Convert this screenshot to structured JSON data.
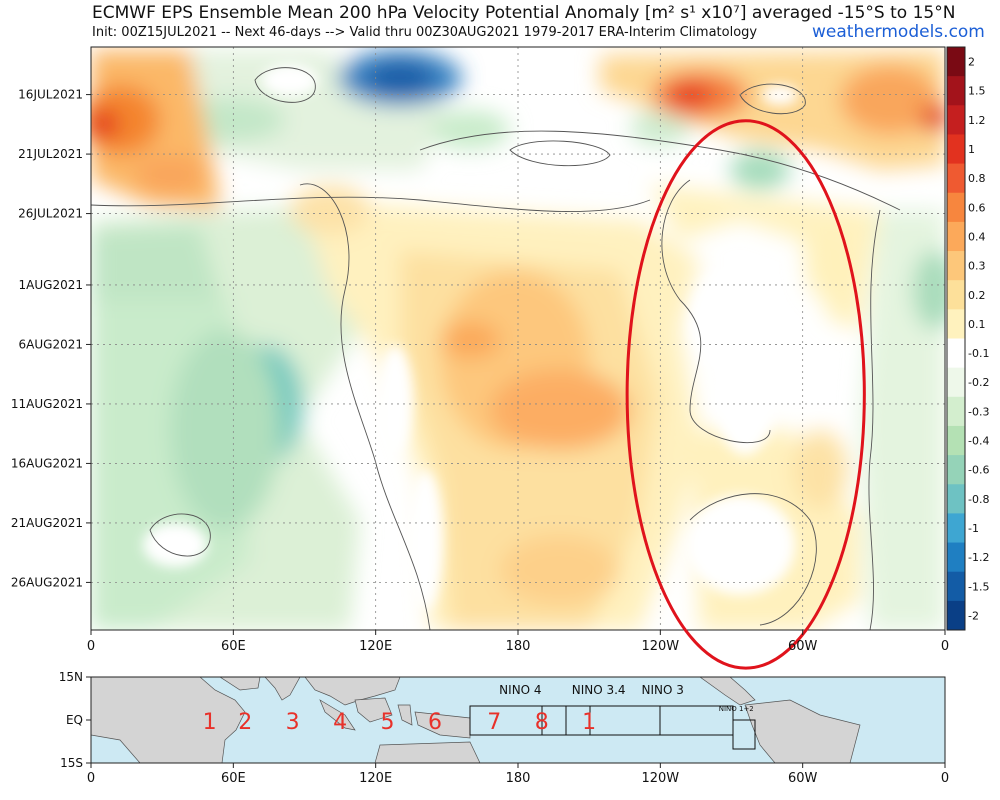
{
  "header": {
    "title": "ECMWF EPS Ensemble Mean 200 hPa Velocity Potential Anomaly [m² s¹ x10⁷] averaged -15°S to 15°N",
    "subtitle": "Init: 00Z15JUL2021 -- Next 46-days --> Valid thru 00Z30AUG2021 1979-2017 ERA-Interim Climatology",
    "brand": "weathermodels.com"
  },
  "chart_data": [
    {
      "type": "heatmap",
      "title": "ECMWF EPS Ensemble Mean 200 hPa Velocity Potential Anomaly [m² s¹ x10⁷] averaged -15°S to 15°N",
      "x_ticks": [
        "0",
        "60E",
        "120E",
        "180",
        "120W",
        "60W",
        "0"
      ],
      "x_tick_lon": [
        0,
        60,
        120,
        180,
        240,
        300,
        360
      ],
      "y_ticks": [
        "16JUL2021",
        "21JUL2021",
        "26JUL2021",
        "1AUG2021",
        "6AUG2021",
        "11AUG2021",
        "16AUG2021",
        "21AUG2021",
        "26AUG2021"
      ],
      "y_tick_day": [
        1,
        6,
        11,
        17,
        22,
        27,
        32,
        37,
        42
      ],
      "ylim_days": [
        -3,
        46
      ],
      "xlim_lon": [
        0,
        360
      ],
      "grid": true,
      "colorbar": {
        "labels": [
          "2",
          "1.5",
          "1.2",
          "1",
          "0.8",
          "0.6",
          "0.4",
          "0.3",
          "0.2",
          "0.1",
          "-0.1",
          "-0.2",
          "-0.3",
          "-0.4",
          "-0.6",
          "-0.8",
          "-1",
          "-1.2",
          "-1.5",
          "-2"
        ],
        "colors": [
          "#7a0a14",
          "#a3131b",
          "#c51f1f",
          "#e2321f",
          "#ef5a31",
          "#f7863e",
          "#fca95a",
          "#fdc77a",
          "#fde09a",
          "#fff2be",
          "#ffffff",
          "#eef8ea",
          "#d3eece",
          "#b4e1b4",
          "#95d3b8",
          "#6ec2c3",
          "#3ea6d2",
          "#1f7fc2",
          "#135ca6",
          "#0a3f86"
        ]
      },
      "anomaly_features": [
        {
          "lon": [
            110,
            160
          ],
          "day": [
            -3,
            2
          ],
          "value": -1.5,
          "sign": "negative"
        },
        {
          "lon": [
            0,
            45
          ],
          "day": [
            0,
            12
          ],
          "value": 0.8,
          "sign": "positive"
        },
        {
          "lon": [
            245,
            300
          ],
          "day": [
            0,
            8
          ],
          "value": 1.0,
          "sign": "positive"
        },
        {
          "lon": [
            140,
            245
          ],
          "day": [
            18,
            38
          ],
          "value": 0.5,
          "sign": "positive"
        },
        {
          "lon": [
            55,
            95
          ],
          "day": [
            22,
            36
          ],
          "value": -0.8,
          "sign": "negative"
        },
        {
          "lon": [
            0,
            120
          ],
          "day": [
            14,
            46
          ],
          "value": -0.4,
          "sign": "negative"
        }
      ],
      "annotations": [
        {
          "shape": "ellipse",
          "color": "#e0131c",
          "lon_center": 276,
          "day_center": 26.2,
          "lon_half_width": 50,
          "day_half_height": 23
        }
      ]
    },
    {
      "type": "map",
      "y_ticks": [
        "15N",
        "EQ",
        "15S"
      ],
      "x_ticks": [
        "0",
        "60E",
        "120E",
        "180",
        "120W",
        "60W",
        "0"
      ],
      "regions": [
        "NINO 4",
        "NINO 3.4",
        "NINO 3",
        "NINO 1+2"
      ],
      "phase_numbers": [
        "1",
        "2",
        "3",
        "4",
        "5",
        "6",
        "7",
        "8",
        "1"
      ],
      "phase_lon": [
        50,
        65,
        85,
        105,
        125,
        145,
        170,
        190,
        210
      ],
      "ocean_color": "#cde9f3",
      "land_color": "#d4d4d4"
    }
  ]
}
